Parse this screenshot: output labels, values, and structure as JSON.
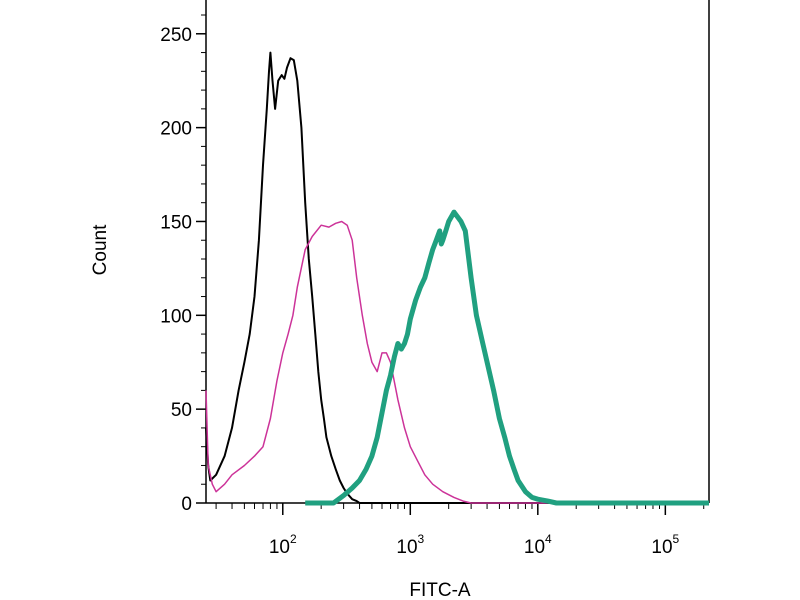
{
  "chart_data": {
    "type": "line",
    "title": "",
    "xlabel": "FITC-A",
    "ylabel": "Count",
    "x_scale": "log",
    "xlim": [
      25,
      220000
    ],
    "ylim": [
      0,
      268
    ],
    "grid": false,
    "legend": "none",
    "x_ticks": [
      {
        "value": 100,
        "base": "10",
        "exp": "2"
      },
      {
        "value": 1000,
        "base": "10",
        "exp": "3"
      },
      {
        "value": 10000,
        "base": "10",
        "exp": "4"
      },
      {
        "value": 100000,
        "base": "10",
        "exp": "5"
      }
    ],
    "y_ticks": [
      {
        "value": 0,
        "label": "0"
      },
      {
        "value": 50,
        "label": "50"
      },
      {
        "value": 100,
        "label": "100"
      },
      {
        "value": 150,
        "label": "150"
      },
      {
        "value": 200,
        "label": "200"
      },
      {
        "value": 250,
        "label": "250"
      }
    ],
    "series": [
      {
        "color": "#000000",
        "width": 2,
        "points": [
          [
            25,
            40
          ],
          [
            26,
            20
          ],
          [
            27,
            12
          ],
          [
            30,
            15
          ],
          [
            35,
            25
          ],
          [
            40,
            40
          ],
          [
            45,
            60
          ],
          [
            50,
            75
          ],
          [
            55,
            90
          ],
          [
            60,
            110
          ],
          [
            65,
            140
          ],
          [
            70,
            180
          ],
          [
            75,
            210
          ],
          [
            78,
            230
          ],
          [
            80,
            240
          ],
          [
            83,
            225
          ],
          [
            87,
            210
          ],
          [
            92,
            225
          ],
          [
            98,
            228
          ],
          [
            103,
            226
          ],
          [
            108,
            232
          ],
          [
            115,
            237
          ],
          [
            122,
            236
          ],
          [
            130,
            225
          ],
          [
            140,
            200
          ],
          [
            150,
            160
          ],
          [
            160,
            130
          ],
          [
            170,
            110
          ],
          [
            180,
            90
          ],
          [
            190,
            70
          ],
          [
            200,
            55
          ],
          [
            210,
            45
          ],
          [
            220,
            35
          ],
          [
            240,
            25
          ],
          [
            260,
            18
          ],
          [
            280,
            12
          ],
          [
            300,
            8
          ],
          [
            320,
            5
          ],
          [
            350,
            2
          ],
          [
            380,
            1
          ],
          [
            400,
            0
          ],
          [
            1000000,
            0
          ]
        ]
      },
      {
        "color": "#cc3399",
        "width": 1.5,
        "points": [
          [
            25,
            60
          ],
          [
            26,
            20
          ],
          [
            28,
            10
          ],
          [
            30,
            6
          ],
          [
            35,
            10
          ],
          [
            40,
            15
          ],
          [
            50,
            20
          ],
          [
            60,
            25
          ],
          [
            70,
            30
          ],
          [
            80,
            45
          ],
          [
            90,
            65
          ],
          [
            100,
            80
          ],
          [
            110,
            90
          ],
          [
            120,
            100
          ],
          [
            130,
            115
          ],
          [
            150,
            135
          ],
          [
            170,
            142
          ],
          [
            200,
            148
          ],
          [
            230,
            147
          ],
          [
            260,
            149
          ],
          [
            290,
            150
          ],
          [
            320,
            148
          ],
          [
            350,
            140
          ],
          [
            380,
            120
          ],
          [
            420,
            100
          ],
          [
            460,
            85
          ],
          [
            500,
            75
          ],
          [
            550,
            70
          ],
          [
            600,
            80
          ],
          [
            650,
            80
          ],
          [
            700,
            75
          ],
          [
            800,
            55
          ],
          [
            900,
            40
          ],
          [
            1000,
            30
          ],
          [
            1150,
            22
          ],
          [
            1300,
            15
          ],
          [
            1500,
            10
          ],
          [
            1800,
            6
          ],
          [
            2200,
            3
          ],
          [
            2600,
            1
          ],
          [
            3000,
            0
          ],
          [
            1000000,
            0
          ]
        ]
      },
      {
        "color": "#20a080",
        "width": 5,
        "points": [
          [
            150,
            0
          ],
          [
            250,
            0
          ],
          [
            300,
            4
          ],
          [
            350,
            8
          ],
          [
            400,
            12
          ],
          [
            450,
            18
          ],
          [
            500,
            25
          ],
          [
            550,
            35
          ],
          [
            600,
            48
          ],
          [
            650,
            60
          ],
          [
            700,
            68
          ],
          [
            750,
            78
          ],
          [
            800,
            85
          ],
          [
            850,
            82
          ],
          [
            900,
            85
          ],
          [
            950,
            90
          ],
          [
            1000,
            98
          ],
          [
            1100,
            108
          ],
          [
            1200,
            115
          ],
          [
            1300,
            120
          ],
          [
            1400,
            128
          ],
          [
            1500,
            135
          ],
          [
            1600,
            140
          ],
          [
            1700,
            145
          ],
          [
            1750,
            138
          ],
          [
            1800,
            140
          ],
          [
            1900,
            145
          ],
          [
            2000,
            150
          ],
          [
            2200,
            155
          ],
          [
            2500,
            150
          ],
          [
            2700,
            145
          ],
          [
            3000,
            120
          ],
          [
            3300,
            100
          ],
          [
            3700,
            85
          ],
          [
            4000,
            75
          ],
          [
            4500,
            60
          ],
          [
            5000,
            45
          ],
          [
            5500,
            35
          ],
          [
            6000,
            25
          ],
          [
            6500,
            18
          ],
          [
            7000,
            12
          ],
          [
            8000,
            6
          ],
          [
            9000,
            3
          ],
          [
            10000,
            2
          ],
          [
            12000,
            1
          ],
          [
            14000,
            0
          ],
          [
            220000,
            0
          ]
        ]
      }
    ]
  }
}
